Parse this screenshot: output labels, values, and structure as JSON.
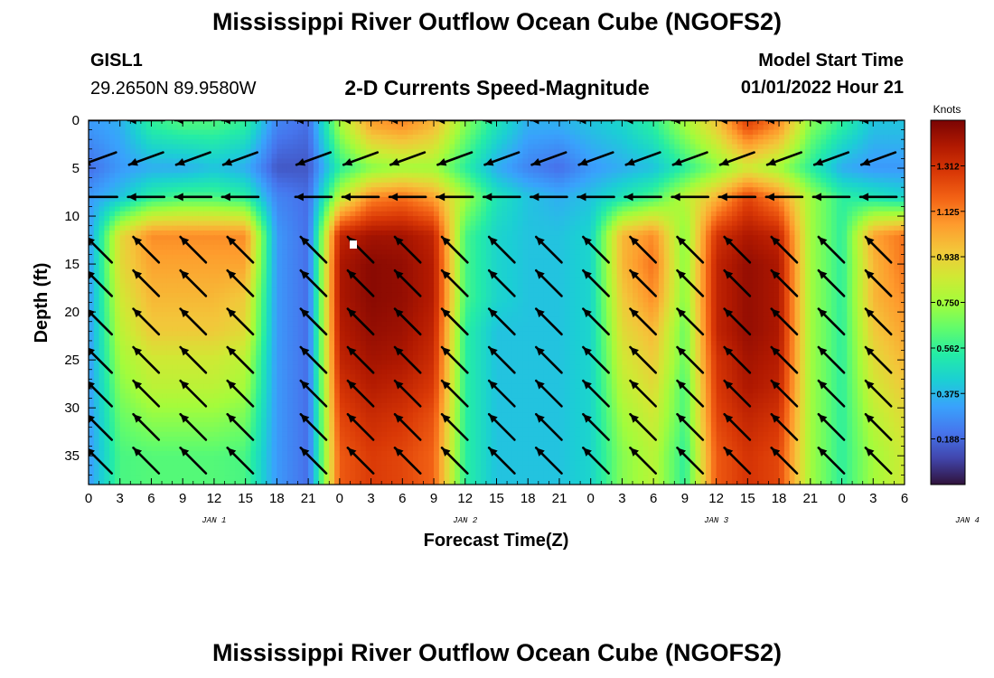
{
  "header": {
    "title": "Mississippi River Outflow Ocean Cube (NGOFS2)",
    "station_id": "GISL1",
    "station_coords": "29.2650N  89.9580W",
    "subtitle": "2-D Currents Speed-Magnitude",
    "model_start_label": "Model Start Time",
    "model_start_value": "01/01/2022 Hour 21"
  },
  "footer": {
    "title": "Mississippi River Outflow Ocean Cube (NGOFS2)"
  },
  "colors": {
    "colormap": [
      "#30123b",
      "#4145ab",
      "#4675ed",
      "#39a2fc",
      "#1bcfd4",
      "#24eca6",
      "#61fc6c",
      "#a4fc3b",
      "#d1e834",
      "#f3c63a",
      "#fe9b2d",
      "#f36315",
      "#d93806",
      "#b11901",
      "#7a0403"
    ]
  },
  "chart_data": {
    "type": "heatmap",
    "title": "2-D Currents Speed-Magnitude",
    "xlabel": "Forecast Time(Z)",
    "ylabel": "Depth (ft)",
    "x_tick_labels": [
      "0",
      "3",
      "6",
      "9",
      "12",
      "15",
      "18",
      "21",
      "0",
      "3",
      "6",
      "9",
      "12",
      "15",
      "18",
      "21",
      "0",
      "3",
      "6",
      "9",
      "12",
      "15",
      "18",
      "21",
      "0",
      "3",
      "6"
    ],
    "date_labels": [
      {
        "label": "JAN 1",
        "hour": 12
      },
      {
        "label": "JAN 2",
        "hour": 36
      },
      {
        "label": "JAN 3",
        "hour": 60
      },
      {
        "label": "JAN 4",
        "hour": 84
      }
    ],
    "xlim": [
      0,
      78
    ],
    "y_ticks": [
      0,
      5,
      10,
      15,
      20,
      25,
      30,
      35
    ],
    "ylim": [
      0,
      38
    ],
    "y_inverted": true,
    "colorbar": {
      "title": "Knots",
      "tick_labels": [
        "1.312",
        "1.125",
        "0.938",
        "0.750",
        "0.562",
        "0.375",
        "0.188"
      ],
      "tick_values": [
        1.312,
        1.125,
        0.938,
        0.75,
        0.562,
        0.375,
        0.188
      ],
      "range": [
        0,
        1.5
      ]
    },
    "depths": [
      0.5,
      5,
      8,
      12,
      15,
      18.5,
      22,
      25,
      28,
      31,
      35
    ],
    "hours": [
      0,
      3,
      6,
      9,
      12,
      15,
      18,
      21,
      24,
      27,
      30,
      33,
      36,
      39,
      42,
      45,
      48,
      51,
      54,
      57,
      60,
      63,
      66,
      69,
      72,
      75,
      78
    ],
    "speed_knots": [
      [
        0.3,
        0.35,
        0.55,
        0.6,
        0.6,
        0.55,
        0.25,
        0.2,
        0.75,
        1.05,
        1.1,
        1.0,
        0.7,
        0.5,
        0.35,
        0.35,
        0.4,
        0.45,
        0.55,
        0.75,
        0.95,
        1.25,
        1.1,
        0.7,
        0.55,
        0.4,
        0.4
      ],
      [
        0.2,
        0.3,
        0.35,
        0.35,
        0.4,
        0.35,
        0.15,
        0.15,
        0.55,
        0.7,
        0.75,
        0.75,
        0.55,
        0.35,
        0.25,
        0.2,
        0.3,
        0.35,
        0.4,
        0.55,
        0.7,
        0.85,
        0.75,
        0.55,
        0.35,
        0.3,
        0.3
      ],
      [
        0.3,
        0.4,
        0.55,
        0.6,
        0.6,
        0.55,
        0.25,
        0.2,
        0.8,
        1.1,
        1.15,
        1.05,
        0.75,
        0.5,
        0.4,
        0.35,
        0.4,
        0.5,
        0.6,
        0.8,
        1.0,
        1.25,
        1.1,
        0.75,
        0.55,
        0.5,
        0.45
      ],
      [
        0.3,
        0.9,
        1.1,
        1.1,
        1.1,
        1.1,
        0.3,
        0.2,
        1.35,
        1.42,
        1.42,
        1.35,
        0.6,
        0.45,
        0.4,
        0.4,
        0.45,
        1.0,
        1.1,
        0.7,
        1.3,
        1.4,
        1.35,
        0.75,
        0.55,
        1.05,
        1.15
      ],
      [
        0.3,
        0.9,
        1.05,
        1.05,
        1.05,
        1.05,
        0.3,
        0.2,
        1.4,
        1.47,
        1.45,
        1.38,
        0.6,
        0.45,
        0.4,
        0.4,
        0.45,
        1.0,
        1.15,
        0.7,
        1.35,
        1.45,
        1.4,
        0.75,
        0.55,
        1.0,
        1.15
      ],
      [
        0.3,
        0.85,
        1.0,
        1.0,
        1.0,
        0.95,
        0.3,
        0.2,
        1.4,
        1.47,
        1.45,
        1.38,
        0.6,
        0.45,
        0.4,
        0.4,
        0.45,
        0.95,
        1.1,
        0.7,
        1.35,
        1.45,
        1.4,
        0.75,
        0.55,
        1.0,
        1.1
      ],
      [
        0.3,
        0.8,
        0.95,
        0.95,
        0.95,
        0.9,
        0.3,
        0.2,
        1.38,
        1.45,
        1.43,
        1.35,
        0.55,
        0.4,
        0.4,
        0.4,
        0.45,
        0.9,
        1.0,
        0.65,
        1.35,
        1.45,
        1.4,
        0.75,
        0.55,
        0.95,
        1.05
      ],
      [
        0.3,
        0.75,
        0.85,
        0.85,
        0.85,
        0.8,
        0.3,
        0.2,
        1.35,
        1.42,
        1.4,
        1.32,
        0.55,
        0.4,
        0.4,
        0.4,
        0.45,
        0.85,
        0.95,
        0.65,
        1.3,
        1.42,
        1.38,
        0.75,
        0.55,
        0.9,
        1.0
      ],
      [
        0.3,
        0.7,
        0.8,
        0.8,
        0.8,
        0.75,
        0.3,
        0.2,
        1.3,
        1.38,
        1.35,
        1.28,
        0.55,
        0.4,
        0.4,
        0.4,
        0.45,
        0.8,
        0.9,
        0.6,
        1.28,
        1.4,
        1.35,
        0.75,
        0.55,
        0.85,
        0.95
      ],
      [
        0.3,
        0.65,
        0.72,
        0.72,
        0.72,
        0.68,
        0.3,
        0.2,
        1.25,
        1.33,
        1.3,
        1.22,
        0.55,
        0.4,
        0.4,
        0.4,
        0.45,
        0.75,
        0.85,
        0.6,
        1.25,
        1.35,
        1.3,
        0.75,
        0.55,
        0.8,
        0.9
      ],
      [
        0.3,
        0.6,
        0.62,
        0.62,
        0.62,
        0.6,
        0.3,
        0.2,
        1.2,
        1.28,
        1.25,
        1.18,
        0.55,
        0.4,
        0.4,
        0.4,
        0.45,
        0.7,
        0.8,
        0.55,
        1.2,
        1.3,
        1.25,
        0.75,
        0.55,
        0.75,
        0.85
      ]
    ],
    "vector_depths": [
      0,
      4,
      8,
      13.5,
      17,
      21,
      25,
      28.5,
      32,
      35.5
    ],
    "vector_hours": [
      1,
      5.5,
      10,
      14.5,
      21.5,
      26,
      30.5,
      35,
      39.5,
      44,
      48.5,
      53,
      57.5,
      62,
      66.5,
      71,
      75.5
    ],
    "vector_angles_deg": [
      [
        180,
        180,
        180,
        180,
        180,
        180,
        180,
        180,
        180,
        180,
        180,
        180,
        180,
        180,
        180,
        180,
        180
      ],
      [
        200,
        200,
        200,
        200,
        200,
        200,
        200,
        200,
        200,
        200,
        200,
        200,
        200,
        200,
        200,
        200,
        200
      ],
      [
        180,
        180,
        180,
        180,
        180,
        180,
        180,
        180,
        180,
        180,
        180,
        180,
        180,
        180,
        180,
        180,
        180
      ],
      [
        135,
        135,
        135,
        135,
        135,
        135,
        135,
        135,
        135,
        135,
        135,
        135,
        135,
        135,
        135,
        135,
        135
      ],
      [
        135,
        135,
        135,
        135,
        135,
        135,
        135,
        135,
        135,
        135,
        135,
        135,
        135,
        135,
        135,
        135,
        135
      ],
      [
        135,
        135,
        135,
        135,
        135,
        135,
        135,
        135,
        135,
        135,
        135,
        135,
        135,
        135,
        135,
        135,
        135
      ],
      [
        135,
        135,
        135,
        135,
        135,
        135,
        135,
        135,
        135,
        135,
        135,
        135,
        135,
        135,
        135,
        135,
        135
      ],
      [
        135,
        135,
        135,
        135,
        135,
        135,
        135,
        135,
        135,
        135,
        135,
        135,
        135,
        135,
        135,
        135,
        135
      ],
      [
        135,
        135,
        135,
        135,
        135,
        135,
        135,
        135,
        135,
        135,
        135,
        135,
        135,
        135,
        135,
        135,
        135
      ],
      [
        135,
        135,
        135,
        135,
        135,
        135,
        135,
        135,
        135,
        135,
        135,
        135,
        135,
        135,
        135,
        135,
        135
      ]
    ]
  }
}
